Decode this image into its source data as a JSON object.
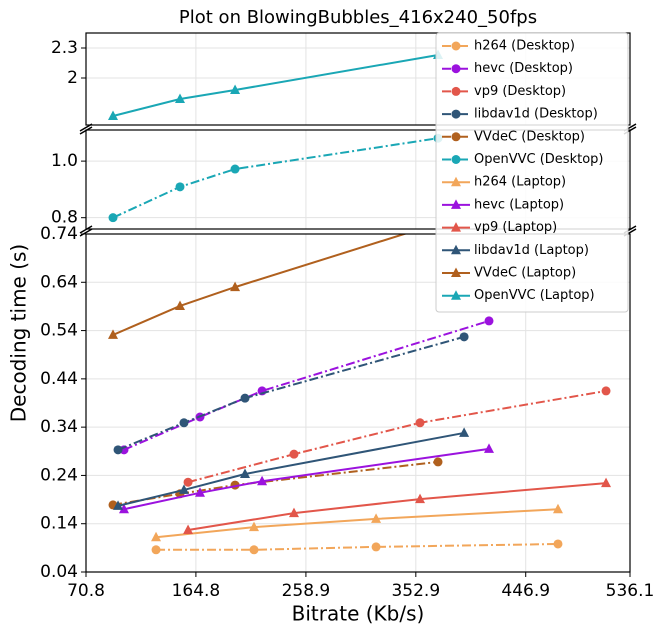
{
  "chart_data": {
    "type": "line",
    "title": "Plot on BlowingBubbles_416x240_50fps",
    "x_label": "Bitrate (Kb/s)",
    "y_label": "Decoding time (s)",
    "xlim": [
      70.8,
      536.1
    ],
    "xticks": [
      70.8,
      164.8,
      258.9,
      352.9,
      446.9,
      536.1
    ],
    "grid": true,
    "legend": "upper right",
    "panels": [
      {
        "ylim": [
          1.53,
          2.45
        ],
        "yticks": [
          2,
          2.3
        ]
      },
      {
        "ylim": [
          0.76,
          1.11
        ],
        "yticks": [
          0.8,
          {
            "value": 1,
            "label": "1.0"
          }
        ]
      },
      {
        "ylim": [
          0.04,
          0.74
        ],
        "yticks": [
          0.04,
          0.14,
          0.24,
          0.34,
          0.44,
          0.54,
          0.64,
          0.74
        ]
      }
    ],
    "series": [
      {
        "name": "h264 (Desktop)",
        "color": "#f2a65a",
        "linestyle": "dashdot",
        "marker": "circle",
        "x": [
          130.7,
          214.5,
          318.9,
          474.5
        ],
        "values": [
          0.086,
          0.086,
          0.092,
          0.098
        ]
      },
      {
        "name": "hevc (Desktop)",
        "color": "#9b12de",
        "linestyle": "dashdot",
        "marker": "circle",
        "x": [
          103.3,
          168.3,
          221.4,
          415.5
        ],
        "values": [
          0.293,
          0.361,
          0.415,
          0.56
        ]
      },
      {
        "name": "vp9 (Desktop)",
        "color": "#e2564a",
        "linestyle": "dashdot",
        "marker": "circle",
        "x": [
          158.1,
          248.7,
          356.5,
          515.6
        ],
        "values": [
          0.226,
          0.284,
          0.349,
          0.415
        ]
      },
      {
        "name": "libdav1d (Desktop)",
        "color": "#2f5577",
        "linestyle": "dashdot",
        "marker": "circle",
        "x": [
          98.2,
          154.6,
          206.8,
          394.2
        ],
        "values": [
          0.293,
          0.349,
          0.4,
          0.527
        ]
      },
      {
        "name": "VVdeC (Desktop)",
        "color": "#b0601e",
        "linestyle": "dashdot",
        "marker": "circle",
        "x": [
          93.9,
          151.2,
          198.3,
          371.9
        ],
        "values": [
          0.179,
          0.202,
          0.22,
          0.268
        ]
      },
      {
        "name": "OpenVVC (Desktop)",
        "color": "#1aa7b5",
        "linestyle": "dashdot",
        "marker": "circle",
        "x": [
          93.9,
          151.2,
          198.3,
          371.9
        ],
        "values": [
          0.8,
          0.909,
          0.972,
          1.081
        ]
      },
      {
        "name": "h264 (Laptop)",
        "color": "#f2a65a",
        "linestyle": "solid",
        "marker": "triangle",
        "x": [
          130.7,
          214.5,
          318.9,
          474.5
        ],
        "values": [
          0.112,
          0.133,
          0.15,
          0.17
        ]
      },
      {
        "name": "hevc (Laptop)",
        "color": "#9b12de",
        "linestyle": "solid",
        "marker": "triangle",
        "x": [
          103.3,
          168.3,
          221.4,
          415.5
        ],
        "values": [
          0.17,
          0.204,
          0.228,
          0.295
        ]
      },
      {
        "name": "vp9 (Laptop)",
        "color": "#e2564a",
        "linestyle": "solid",
        "marker": "triangle",
        "x": [
          158.1,
          248.7,
          356.5,
          515.6
        ],
        "values": [
          0.127,
          0.162,
          0.191,
          0.224
        ]
      },
      {
        "name": "libdav1d (Laptop)",
        "color": "#2f5577",
        "linestyle": "solid",
        "marker": "triangle",
        "x": [
          98.2,
          154.6,
          206.8,
          394.2
        ],
        "values": [
          0.177,
          0.21,
          0.243,
          0.328
        ]
      },
      {
        "name": "VVdeC (Laptop)",
        "color": "#b0601e",
        "linestyle": "solid",
        "marker": "triangle",
        "x": [
          93.9,
          151.2,
          198.3,
          371.9
        ],
        "values": [
          0.531,
          0.591,
          0.63,
          0.762
        ]
      },
      {
        "name": "OpenVVC (Laptop)",
        "color": "#1aa7b5",
        "linestyle": "solid",
        "marker": "triangle",
        "x": [
          93.9,
          151.2,
          198.3,
          371.9
        ],
        "values": [
          1.62,
          1.79,
          1.88,
          2.23
        ]
      }
    ]
  }
}
